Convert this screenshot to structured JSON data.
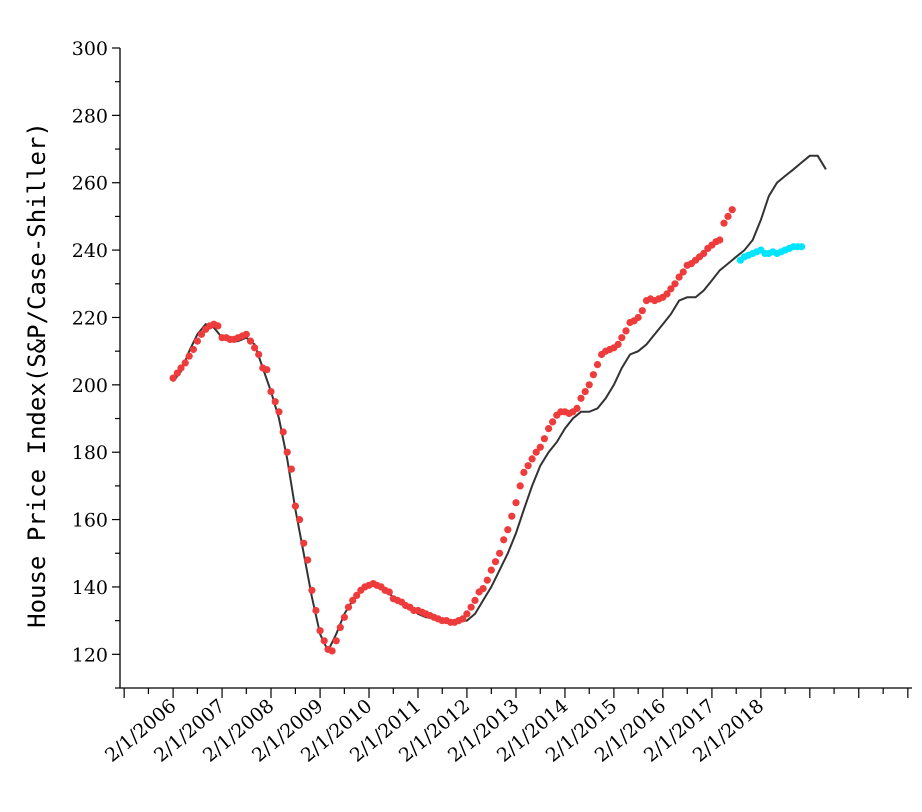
{
  "chart_data": {
    "type": "line",
    "title": "",
    "xlabel": "",
    "ylabel": "House Price Index(S&P/Case-Shiller)",
    "ylim": [
      110,
      300
    ],
    "y_ticks": [
      120,
      140,
      160,
      180,
      200,
      220,
      240,
      260,
      280,
      300
    ],
    "x_ticks": [
      "2/1/2006",
      "2/1/2007",
      "2/1/2008",
      "2/1/2009",
      "2/1/2010",
      "2/1/2011",
      "2/1/2012",
      "2/1/2013",
      "2/1/2014",
      "2/1/2015",
      "2/1/2016",
      "2/1/2017",
      "2/1/2018"
    ],
    "xlim": [
      "2004-12-01",
      "2021-02-01"
    ],
    "grid": false,
    "legend": "none",
    "colors": {
      "actual_line": "#333333",
      "fitted": "#ee3b3b",
      "forecast": "#00e5ff"
    },
    "series": [
      {
        "role": "actual",
        "style": "line",
        "points": [
          [
            "2006-01-01",
            201
          ],
          [
            "2006-03-01",
            204
          ],
          [
            "2006-05-01",
            210
          ],
          [
            "2006-07-01",
            215
          ],
          [
            "2006-09-01",
            218
          ],
          [
            "2006-11-01",
            217
          ],
          [
            "2007-01-01",
            214
          ],
          [
            "2007-03-01",
            213
          ],
          [
            "2007-05-01",
            213
          ],
          [
            "2007-07-01",
            214
          ],
          [
            "2007-09-01",
            212
          ],
          [
            "2007-11-01",
            205
          ],
          [
            "2008-01-01",
            198
          ],
          [
            "2008-03-01",
            190
          ],
          [
            "2008-05-01",
            178
          ],
          [
            "2008-07-01",
            163
          ],
          [
            "2008-09-01",
            150
          ],
          [
            "2008-11-01",
            137
          ],
          [
            "2009-01-01",
            126
          ],
          [
            "2009-03-01",
            121
          ],
          [
            "2009-05-01",
            126
          ],
          [
            "2009-07-01",
            132
          ],
          [
            "2009-09-01",
            136
          ],
          [
            "2009-11-01",
            139
          ],
          [
            "2010-01-01",
            140
          ],
          [
            "2010-03-01",
            141
          ],
          [
            "2010-05-01",
            139
          ],
          [
            "2010-07-01",
            137
          ],
          [
            "2010-09-01",
            135
          ],
          [
            "2010-11-01",
            134
          ],
          [
            "2011-01-01",
            132
          ],
          [
            "2011-03-01",
            131
          ],
          [
            "2011-05-01",
            131
          ],
          [
            "2011-07-01",
            130
          ],
          [
            "2011-09-01",
            130
          ],
          [
            "2011-11-01",
            130
          ],
          [
            "2012-01-01",
            130
          ],
          [
            "2012-03-01",
            132
          ],
          [
            "2012-05-01",
            136
          ],
          [
            "2012-07-01",
            140
          ],
          [
            "2012-09-01",
            145
          ],
          [
            "2012-11-01",
            150
          ],
          [
            "2013-01-01",
            156
          ],
          [
            "2013-03-01",
            163
          ],
          [
            "2013-05-01",
            170
          ],
          [
            "2013-07-01",
            176
          ],
          [
            "2013-09-01",
            180
          ],
          [
            "2013-11-01",
            183
          ],
          [
            "2014-01-01",
            187
          ],
          [
            "2014-03-01",
            190
          ],
          [
            "2014-05-01",
            192
          ],
          [
            "2014-07-01",
            192
          ],
          [
            "2014-09-01",
            193
          ],
          [
            "2014-11-01",
            196
          ],
          [
            "2015-01-01",
            200
          ],
          [
            "2015-03-01",
            205
          ],
          [
            "2015-05-01",
            209
          ],
          [
            "2015-07-01",
            210
          ],
          [
            "2015-09-01",
            212
          ],
          [
            "2015-11-01",
            215
          ],
          [
            "2016-01-01",
            218
          ],
          [
            "2016-03-01",
            221
          ],
          [
            "2016-05-01",
            225
          ],
          [
            "2016-07-01",
            226
          ],
          [
            "2016-09-01",
            226
          ],
          [
            "2016-11-01",
            228
          ],
          [
            "2017-01-01",
            231
          ],
          [
            "2017-03-01",
            234
          ],
          [
            "2017-05-01",
            236
          ],
          [
            "2017-07-01",
            238
          ],
          [
            "2017-09-01",
            240
          ],
          [
            "2017-11-01",
            243
          ],
          [
            "2018-01-01",
            249
          ],
          [
            "2018-03-01",
            256
          ],
          [
            "2018-05-01",
            260
          ],
          [
            "2018-07-01",
            262
          ],
          [
            "2018-09-01",
            264
          ],
          [
            "2018-11-01",
            266
          ],
          [
            "2019-01-01",
            268
          ],
          [
            "2019-03-01",
            268
          ],
          [
            "2019-05-01",
            264
          ]
        ]
      },
      {
        "role": "fitted",
        "style": "markers",
        "points": [
          [
            "2006-01-01",
            202
          ],
          [
            "2006-02-01",
            203.5
          ],
          [
            "2006-03-01",
            205
          ],
          [
            "2006-04-01",
            206.5
          ],
          [
            "2006-05-01",
            208.5
          ],
          [
            "2006-06-01",
            210.5
          ],
          [
            "2006-07-01",
            213
          ],
          [
            "2006-08-01",
            215
          ],
          [
            "2006-09-01",
            216.5
          ],
          [
            "2006-10-01",
            217.5
          ],
          [
            "2006-11-01",
            218
          ],
          [
            "2006-12-01",
            217.5
          ],
          [
            "2007-01-01",
            214
          ],
          [
            "2007-02-01",
            214
          ],
          [
            "2007-03-01",
            213.5
          ],
          [
            "2007-04-01",
            213.5
          ],
          [
            "2007-05-01",
            214
          ],
          [
            "2007-06-01",
            214.5
          ],
          [
            "2007-07-01",
            215
          ],
          [
            "2007-08-01",
            213
          ],
          [
            "2007-09-01",
            211
          ],
          [
            "2007-10-01",
            209
          ],
          [
            "2007-11-01",
            205
          ],
          [
            "2007-12-01",
            204.5
          ],
          [
            "2008-01-01",
            198
          ],
          [
            "2008-02-01",
            195
          ],
          [
            "2008-03-01",
            192
          ],
          [
            "2008-04-01",
            186
          ],
          [
            "2008-05-01",
            180
          ],
          [
            "2008-06-01",
            175
          ],
          [
            "2008-07-01",
            164
          ],
          [
            "2008-08-01",
            160
          ],
          [
            "2008-09-01",
            153
          ],
          [
            "2008-10-01",
            148
          ],
          [
            "2008-11-01",
            139
          ],
          [
            "2008-12-01",
            133
          ],
          [
            "2009-01-01",
            127
          ],
          [
            "2009-02-01",
            124
          ],
          [
            "2009-03-01",
            121.5
          ],
          [
            "2009-04-01",
            121
          ],
          [
            "2009-05-01",
            124
          ],
          [
            "2009-06-01",
            128
          ],
          [
            "2009-07-01",
            131
          ],
          [
            "2009-08-01",
            134
          ],
          [
            "2009-09-01",
            136
          ],
          [
            "2009-10-01",
            137.5
          ],
          [
            "2009-11-01",
            139
          ],
          [
            "2009-12-01",
            140
          ],
          [
            "2010-01-01",
            140.5
          ],
          [
            "2010-02-01",
            141
          ],
          [
            "2010-03-01",
            140.5
          ],
          [
            "2010-04-01",
            140
          ],
          [
            "2010-05-01",
            139
          ],
          [
            "2010-06-01",
            138.5
          ],
          [
            "2010-07-01",
            136.5
          ],
          [
            "2010-08-01",
            136
          ],
          [
            "2010-09-01",
            135.5
          ],
          [
            "2010-10-01",
            134.5
          ],
          [
            "2010-11-01",
            134
          ],
          [
            "2010-12-01",
            133
          ],
          [
            "2011-01-01",
            133
          ],
          [
            "2011-02-01",
            132.5
          ],
          [
            "2011-03-01",
            132
          ],
          [
            "2011-04-01",
            131.5
          ],
          [
            "2011-05-01",
            131
          ],
          [
            "2011-06-01",
            130.5
          ],
          [
            "2011-07-01",
            130
          ],
          [
            "2011-08-01",
            130
          ],
          [
            "2011-09-01",
            129.5
          ],
          [
            "2011-10-01",
            129.5
          ],
          [
            "2011-11-01",
            130
          ],
          [
            "2011-12-01",
            130.5
          ],
          [
            "2012-01-01",
            132
          ],
          [
            "2012-02-01",
            134
          ],
          [
            "2012-03-01",
            136
          ],
          [
            "2012-04-01",
            138.5
          ],
          [
            "2012-05-01",
            139.5
          ],
          [
            "2012-06-01",
            142
          ],
          [
            "2012-07-01",
            145
          ],
          [
            "2012-08-01",
            147.5
          ],
          [
            "2012-09-01",
            150
          ],
          [
            "2012-10-01",
            154
          ],
          [
            "2012-11-01",
            157
          ],
          [
            "2012-12-01",
            161
          ],
          [
            "2013-01-01",
            165
          ],
          [
            "2013-02-01",
            170
          ],
          [
            "2013-03-01",
            174
          ],
          [
            "2013-04-01",
            176
          ],
          [
            "2013-05-01",
            178
          ],
          [
            "2013-06-01",
            180
          ],
          [
            "2013-07-01",
            181.5
          ],
          [
            "2013-08-01",
            184
          ],
          [
            "2013-09-01",
            187
          ],
          [
            "2013-10-01",
            189
          ],
          [
            "2013-11-01",
            191
          ],
          [
            "2013-12-01",
            192
          ],
          [
            "2014-01-01",
            192
          ],
          [
            "2014-02-01",
            191.5
          ],
          [
            "2014-03-01",
            192
          ],
          [
            "2014-04-01",
            193
          ],
          [
            "2014-05-01",
            196
          ],
          [
            "2014-06-01",
            198
          ],
          [
            "2014-07-01",
            200
          ],
          [
            "2014-08-01",
            203
          ],
          [
            "2014-09-01",
            206
          ],
          [
            "2014-10-01",
            209
          ],
          [
            "2014-11-01",
            210
          ],
          [
            "2014-12-01",
            210.5
          ],
          [
            "2015-01-01",
            211
          ],
          [
            "2015-02-01",
            212
          ],
          [
            "2015-03-01",
            214
          ],
          [
            "2015-04-01",
            216
          ],
          [
            "2015-05-01",
            218.5
          ],
          [
            "2015-06-01",
            219
          ],
          [
            "2015-07-01",
            220
          ],
          [
            "2015-08-01",
            222
          ],
          [
            "2015-09-01",
            225
          ],
          [
            "2015-10-01",
            225.5
          ],
          [
            "2015-11-01",
            225
          ],
          [
            "2015-12-01",
            225.5
          ],
          [
            "2016-01-01",
            226
          ],
          [
            "2016-02-01",
            227
          ],
          [
            "2016-03-01",
            228.5
          ],
          [
            "2016-04-01",
            230
          ],
          [
            "2016-05-01",
            232
          ],
          [
            "2016-06-01",
            233.5
          ],
          [
            "2016-07-01",
            235.5
          ],
          [
            "2016-08-01",
            236
          ],
          [
            "2016-09-01",
            237
          ],
          [
            "2016-10-01",
            238
          ],
          [
            "2016-11-01",
            239
          ],
          [
            "2016-12-01",
            240.5
          ],
          [
            "2017-01-01",
            241.5
          ],
          [
            "2017-02-01",
            242.5
          ],
          [
            "2017-03-01",
            243
          ],
          [
            "2017-04-01",
            248
          ],
          [
            "2017-05-01",
            250
          ],
          [
            "2017-06-01",
            252
          ]
        ]
      },
      {
        "role": "forecast",
        "style": "markers",
        "points": [
          [
            "2017-08-01",
            237
          ],
          [
            "2017-09-01",
            238
          ],
          [
            "2017-10-01",
            238.5
          ],
          [
            "2017-11-01",
            239
          ],
          [
            "2017-12-01",
            239.5
          ],
          [
            "2018-01-01",
            240
          ],
          [
            "2018-02-01",
            239
          ],
          [
            "2018-03-01",
            239
          ],
          [
            "2018-04-01",
            239.5
          ],
          [
            "2018-05-01",
            239
          ],
          [
            "2018-06-01",
            239.5
          ],
          [
            "2018-07-01",
            240
          ],
          [
            "2018-08-01",
            240.5
          ],
          [
            "2018-09-01",
            241
          ],
          [
            "2018-10-01",
            241
          ],
          [
            "2018-11-01",
            241
          ]
        ]
      }
    ]
  }
}
